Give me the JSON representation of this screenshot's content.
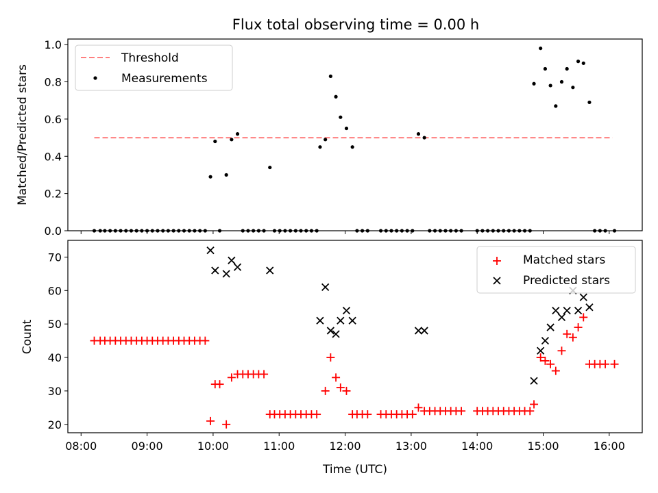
{
  "chart_data": [
    {
      "type": "scatter",
      "title": "Flux total observing time = 0.00 h",
      "xlabel": "",
      "ylabel": "Matched/Predicted stars",
      "xlim": [
        7.8,
        16.5
      ],
      "ylim": [
        0,
        1.03
      ],
      "yticks": [
        0,
        0.2,
        0.4,
        0.6,
        0.8,
        1.0
      ],
      "ytick_labels": [
        "0.0",
        "0.2",
        "0.4",
        "0.6",
        "0.8",
        "1.0"
      ],
      "legend": {
        "position": "top-left",
        "entries": [
          "Threshold",
          "Measurements"
        ]
      },
      "series": [
        {
          "name": "Threshold",
          "kind": "dashed-line",
          "color": "#ff7f7f",
          "x": [
            8.2,
            16.05
          ],
          "y": [
            0.5,
            0.5
          ]
        },
        {
          "name": "Measurements",
          "kind": "dots",
          "color": "#000000",
          "x": [
            8.2,
            8.29,
            8.36,
            8.44,
            8.52,
            8.6,
            8.68,
            8.76,
            8.84,
            8.92,
            9.0,
            9.08,
            9.16,
            9.24,
            9.32,
            9.4,
            9.48,
            9.56,
            9.64,
            9.72,
            9.8,
            9.88,
            9.96,
            10.03,
            10.1,
            10.2,
            10.28,
            10.37,
            10.45,
            10.53,
            10.61,
            10.69,
            10.77,
            10.86,
            10.93,
            11.01,
            11.09,
            11.17,
            11.25,
            11.33,
            11.41,
            11.49,
            11.57,
            11.62,
            11.7,
            11.78,
            11.86,
            11.93,
            12.02,
            12.11,
            12.18,
            12.26,
            12.34,
            12.54,
            12.62,
            12.7,
            12.78,
            12.86,
            12.94,
            13.02,
            13.11,
            13.2,
            13.28,
            13.36,
            13.44,
            13.52,
            13.6,
            13.68,
            13.76,
            14.0,
            14.08,
            14.16,
            14.24,
            14.32,
            14.4,
            14.48,
            14.56,
            14.64,
            14.72,
            14.8,
            14.86,
            14.96,
            15.03,
            15.11,
            15.19,
            15.28,
            15.36,
            15.45,
            15.53,
            15.61,
            15.7,
            15.78,
            15.86,
            15.94,
            16.08
          ],
          "y": [
            0,
            0,
            0,
            0,
            0,
            0,
            0,
            0,
            0,
            0,
            0,
            0,
            0,
            0,
            0,
            0,
            0,
            0,
            0,
            0,
            0,
            0,
            0.29,
            0.48,
            0,
            0.3,
            0.49,
            0.52,
            0,
            0,
            0,
            0,
            0,
            0.34,
            0,
            0,
            0,
            0,
            0,
            0,
            0,
            0,
            0,
            0.45,
            0.49,
            0.83,
            0.72,
            0.61,
            0.55,
            0.45,
            0,
            0,
            0,
            0,
            0,
            0,
            0,
            0,
            0,
            0,
            0.52,
            0.5,
            0,
            0,
            0,
            0,
            0,
            0,
            0,
            0,
            0,
            0,
            0,
            0,
            0,
            0,
            0,
            0,
            0,
            0,
            0.79,
            0.98,
            0.87,
            0.78,
            0.67,
            0.8,
            0.87,
            0.77,
            0.91,
            0.9,
            0.69,
            0,
            0,
            0,
            0
          ]
        }
      ]
    },
    {
      "type": "scatter",
      "title": "",
      "xlabel": "Time (UTC)",
      "ylabel": "Count",
      "xlim": [
        7.8,
        16.5
      ],
      "ylim": [
        17.5,
        75
      ],
      "xticks": [
        8,
        9,
        10,
        11,
        12,
        13,
        14,
        15,
        16
      ],
      "xtick_labels": [
        "08:00",
        "09:00",
        "10:00",
        "11:00",
        "12:00",
        "13:00",
        "14:00",
        "15:00",
        "16:00"
      ],
      "yticks": [
        20,
        30,
        40,
        50,
        60,
        70
      ],
      "ytick_labels": [
        "20",
        "30",
        "40",
        "50",
        "60",
        "70"
      ],
      "legend": {
        "position": "top-right",
        "entries": [
          "Matched stars",
          "Predicted stars"
        ]
      },
      "series": [
        {
          "name": "Matched stars",
          "kind": "plus",
          "color": "#ff0000",
          "x": [
            8.2,
            8.29,
            8.36,
            8.44,
            8.52,
            8.6,
            8.68,
            8.76,
            8.84,
            8.92,
            9.0,
            9.08,
            9.16,
            9.24,
            9.32,
            9.4,
            9.48,
            9.56,
            9.64,
            9.72,
            9.8,
            9.88,
            9.96,
            10.03,
            10.1,
            10.2,
            10.28,
            10.37,
            10.45,
            10.53,
            10.61,
            10.69,
            10.77,
            10.86,
            10.93,
            11.01,
            11.09,
            11.17,
            11.25,
            11.33,
            11.41,
            11.49,
            11.57,
            11.7,
            11.78,
            11.86,
            11.93,
            12.02,
            12.11,
            12.18,
            12.26,
            12.34,
            12.54,
            12.62,
            12.7,
            12.78,
            12.86,
            12.94,
            13.02,
            13.11,
            13.2,
            13.28,
            13.36,
            13.44,
            13.52,
            13.6,
            13.68,
            13.76,
            14.0,
            14.08,
            14.16,
            14.24,
            14.32,
            14.4,
            14.48,
            14.56,
            14.64,
            14.72,
            14.8,
            14.86,
            14.96,
            15.03,
            15.11,
            15.19,
            15.28,
            15.36,
            15.45,
            15.53,
            15.61,
            15.7,
            15.78,
            15.86,
            15.94,
            16.08
          ],
          "y": [
            45,
            45,
            45,
            45,
            45,
            45,
            45,
            45,
            45,
            45,
            45,
            45,
            45,
            45,
            45,
            45,
            45,
            45,
            45,
            45,
            45,
            45,
            21,
            32,
            32,
            20,
            34,
            35,
            35,
            35,
            35,
            35,
            35,
            23,
            23,
            23,
            23,
            23,
            23,
            23,
            23,
            23,
            23,
            30,
            40,
            34,
            31,
            30,
            23,
            23,
            23,
            23,
            23,
            23,
            23,
            23,
            23,
            23,
            23,
            25,
            24,
            24,
            24,
            24,
            24,
            24,
            24,
            24,
            24,
            24,
            24,
            24,
            24,
            24,
            24,
            24,
            24,
            24,
            24,
            26,
            40,
            39,
            38,
            36,
            42,
            47,
            46,
            49,
            52,
            38,
            38,
            38,
            38,
            38
          ]
        },
        {
          "name": "Predicted stars",
          "kind": "x",
          "color": "#000000",
          "x": [
            9.96,
            10.03,
            10.2,
            10.28,
            10.37,
            10.86,
            11.62,
            11.7,
            11.78,
            11.86,
            11.93,
            12.02,
            12.11,
            13.11,
            13.2,
            14.86,
            14.96,
            15.03,
            15.11,
            15.19,
            15.28,
            15.36,
            15.45,
            15.53,
            15.61,
            15.7
          ],
          "y": [
            72,
            66,
            65,
            69,
            67,
            66,
            51,
            61,
            48,
            47,
            51,
            54,
            51,
            48,
            48,
            33,
            42,
            45,
            49,
            54,
            52,
            54,
            60,
            54,
            58,
            55
          ]
        }
      ]
    }
  ]
}
